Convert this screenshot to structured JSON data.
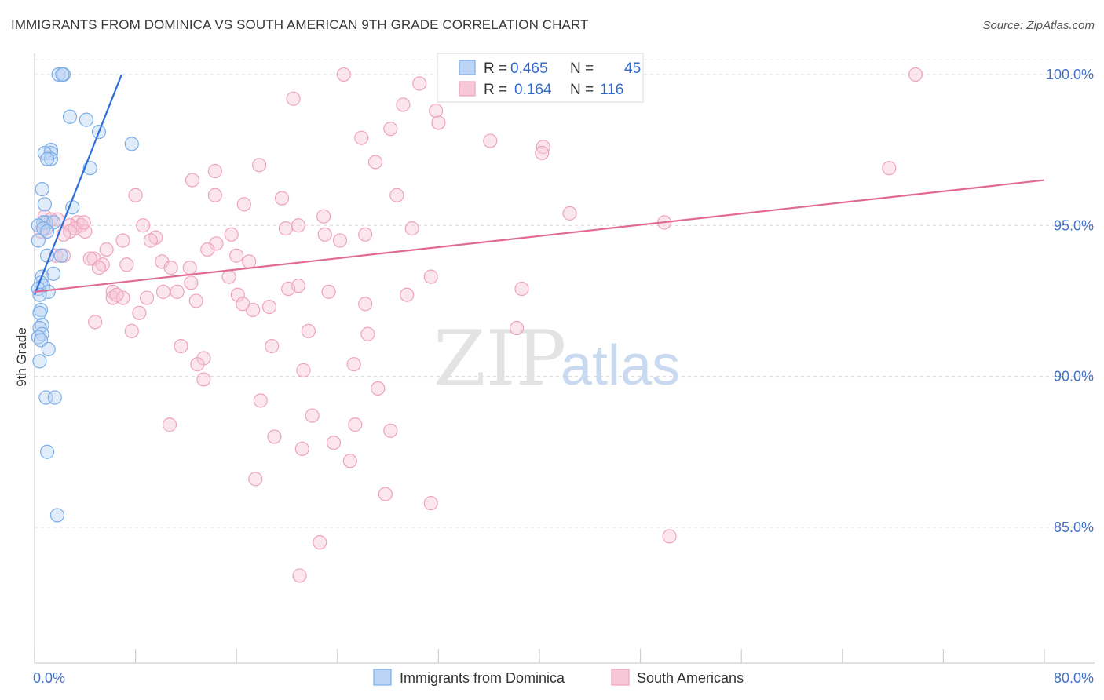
{
  "chart_data": {
    "type": "scatter",
    "title": "IMMIGRANTS FROM DOMINICA VS SOUTH AMERICAN 9TH GRADE CORRELATION CHART",
    "source": "Source: ZipAtlas.com",
    "ylabel": "9th Grade",
    "xlim": [
      0,
      80
    ],
    "ylim": [
      80.5,
      100.7
    ],
    "x_tick_labels": {
      "left": "0.0%",
      "right": "80.0%"
    },
    "y_ticks": [
      {
        "value": 100,
        "label": "100.0%"
      },
      {
        "value": 95,
        "label": "95.0%"
      },
      {
        "value": 90,
        "label": "90.0%"
      },
      {
        "value": 85,
        "label": "85.0%"
      }
    ],
    "watermark": {
      "zip": "ZIP",
      "atlas": "atlas"
    },
    "legend": {
      "r_label": "R =",
      "n_label": "N =",
      "entries": [
        {
          "r": "0.465",
          "n": "45"
        },
        {
          "r": "0.164",
          "n": "116"
        }
      ]
    },
    "series": [
      {
        "name": "Immigrants from Dominica",
        "color": "#7aaee8",
        "fill": "#bcd4f5",
        "line_color": "#2e6fd6",
        "trend": {
          "x": [
            0.0,
            6.9
          ],
          "y": [
            92.7,
            100.0
          ]
        },
        "points": [
          [
            1.9,
            100.0
          ],
          [
            2.3,
            100.0
          ],
          [
            2.2,
            100.0
          ],
          [
            2.8,
            98.6
          ],
          [
            4.1,
            98.5
          ],
          [
            5.1,
            98.1
          ],
          [
            7.7,
            97.7
          ],
          [
            1.3,
            97.5
          ],
          [
            1.3,
            97.4
          ],
          [
            0.8,
            97.4
          ],
          [
            1.3,
            97.2
          ],
          [
            1.0,
            97.2
          ],
          [
            4.4,
            96.9
          ],
          [
            0.6,
            96.2
          ],
          [
            0.8,
            95.7
          ],
          [
            3.0,
            95.6
          ],
          [
            0.9,
            95.1
          ],
          [
            0.7,
            95.1
          ],
          [
            1.5,
            95.1
          ],
          [
            0.3,
            95.0
          ],
          [
            0.7,
            94.9
          ],
          [
            1.0,
            94.8
          ],
          [
            0.3,
            94.5
          ],
          [
            2.1,
            94.0
          ],
          [
            1.0,
            94.0
          ],
          [
            1.5,
            93.4
          ],
          [
            0.6,
            93.3
          ],
          [
            0.5,
            93.1
          ],
          [
            0.7,
            93.0
          ],
          [
            0.3,
            92.9
          ],
          [
            1.1,
            92.8
          ],
          [
            0.4,
            92.7
          ],
          [
            0.5,
            92.2
          ],
          [
            0.4,
            92.1
          ],
          [
            0.6,
            91.7
          ],
          [
            0.4,
            91.6
          ],
          [
            0.6,
            91.4
          ],
          [
            0.3,
            91.3
          ],
          [
            0.5,
            91.2
          ],
          [
            1.1,
            90.9
          ],
          [
            0.4,
            90.5
          ],
          [
            0.9,
            89.3
          ],
          [
            1.6,
            89.3
          ],
          [
            1.0,
            87.5
          ],
          [
            1.8,
            85.4
          ]
        ]
      },
      {
        "name": "South Americans",
        "color": "#eea3bd",
        "fill": "#f7c7d7",
        "line_color": "#e06a93",
        "trend": {
          "x": [
            0.0,
            80.0
          ],
          "y": [
            92.8,
            96.5
          ]
        },
        "points": [
          [
            24.5,
            100.0
          ],
          [
            32.8,
            100.0
          ],
          [
            41.1,
            100.0
          ],
          [
            69.8,
            100.0
          ],
          [
            30.5,
            99.7
          ],
          [
            20.5,
            99.2
          ],
          [
            29.2,
            99.0
          ],
          [
            31.8,
            98.8
          ],
          [
            32.0,
            98.4
          ],
          [
            28.2,
            98.2
          ],
          [
            25.9,
            97.9
          ],
          [
            36.1,
            97.8
          ],
          [
            40.3,
            97.6
          ],
          [
            40.2,
            97.4
          ],
          [
            27.0,
            97.1
          ],
          [
            17.8,
            97.0
          ],
          [
            67.7,
            96.9
          ],
          [
            14.3,
            96.8
          ],
          [
            12.5,
            96.5
          ],
          [
            28.7,
            96.0
          ],
          [
            8.0,
            96.0
          ],
          [
            14.3,
            96.0
          ],
          [
            19.6,
            95.9
          ],
          [
            16.6,
            95.7
          ],
          [
            42.4,
            95.4
          ],
          [
            22.9,
            95.3
          ],
          [
            0.8,
            95.3
          ],
          [
            1.8,
            95.2
          ],
          [
            1.3,
            95.2
          ],
          [
            49.9,
            95.1
          ],
          [
            3.4,
            95.1
          ],
          [
            2.8,
            95.0
          ],
          [
            3.7,
            95.0
          ],
          [
            0.9,
            94.9
          ],
          [
            20.9,
            95.0
          ],
          [
            8.6,
            95.0
          ],
          [
            19.9,
            94.9
          ],
          [
            3.2,
            94.9
          ],
          [
            4.0,
            94.8
          ],
          [
            29.9,
            94.9
          ],
          [
            0.5,
            94.8
          ],
          [
            2.8,
            94.8
          ],
          [
            15.6,
            94.7
          ],
          [
            26.2,
            94.7
          ],
          [
            23.0,
            94.7
          ],
          [
            9.6,
            94.6
          ],
          [
            9.2,
            94.5
          ],
          [
            7.0,
            94.5
          ],
          [
            24.2,
            94.5
          ],
          [
            14.4,
            94.4
          ],
          [
            13.7,
            94.2
          ],
          [
            5.7,
            94.2
          ],
          [
            1.7,
            94.0
          ],
          [
            2.3,
            94.0
          ],
          [
            16.0,
            94.0
          ],
          [
            4.7,
            93.9
          ],
          [
            4.4,
            93.9
          ],
          [
            10.1,
            93.8
          ],
          [
            17.0,
            93.8
          ],
          [
            5.4,
            93.7
          ],
          [
            7.3,
            93.7
          ],
          [
            5.1,
            93.6
          ],
          [
            12.3,
            93.6
          ],
          [
            10.8,
            93.6
          ],
          [
            15.4,
            93.3
          ],
          [
            12.4,
            93.1
          ],
          [
            20.9,
            93.0
          ],
          [
            38.6,
            92.9
          ],
          [
            20.1,
            92.9
          ],
          [
            11.3,
            92.8
          ],
          [
            6.2,
            92.8
          ],
          [
            10.2,
            92.8
          ],
          [
            16.1,
            92.7
          ],
          [
            23.3,
            92.8
          ],
          [
            29.5,
            92.7
          ],
          [
            6.2,
            92.6
          ],
          [
            7.0,
            92.6
          ],
          [
            8.9,
            92.6
          ],
          [
            26.2,
            92.4
          ],
          [
            16.5,
            92.4
          ],
          [
            18.6,
            92.3
          ],
          [
            17.3,
            92.2
          ],
          [
            8.3,
            92.1
          ],
          [
            4.8,
            91.8
          ],
          [
            38.2,
            91.6
          ],
          [
            7.7,
            91.5
          ],
          [
            21.7,
            91.5
          ],
          [
            26.4,
            91.4
          ],
          [
            11.6,
            91.0
          ],
          [
            18.8,
            91.0
          ],
          [
            13.4,
            90.6
          ],
          [
            12.9,
            90.4
          ],
          [
            25.3,
            90.4
          ],
          [
            21.3,
            90.2
          ],
          [
            13.4,
            89.9
          ],
          [
            27.2,
            89.6
          ],
          [
            17.9,
            89.2
          ],
          [
            22.0,
            88.7
          ],
          [
            10.7,
            88.4
          ],
          [
            25.4,
            88.4
          ],
          [
            28.2,
            88.2
          ],
          [
            19.0,
            88.0
          ],
          [
            23.7,
            87.8
          ],
          [
            21.2,
            87.6
          ],
          [
            25.0,
            87.2
          ],
          [
            17.5,
            86.6
          ],
          [
            27.8,
            86.1
          ],
          [
            31.4,
            85.8
          ],
          [
            50.3,
            84.7
          ],
          [
            22.6,
            84.5
          ],
          [
            21.0,
            83.4
          ],
          [
            6.5,
            92.7
          ],
          [
            2.3,
            94.7
          ],
          [
            3.9,
            95.1
          ],
          [
            31.4,
            93.3
          ],
          [
            12.8,
            92.5
          ]
        ]
      }
    ]
  }
}
